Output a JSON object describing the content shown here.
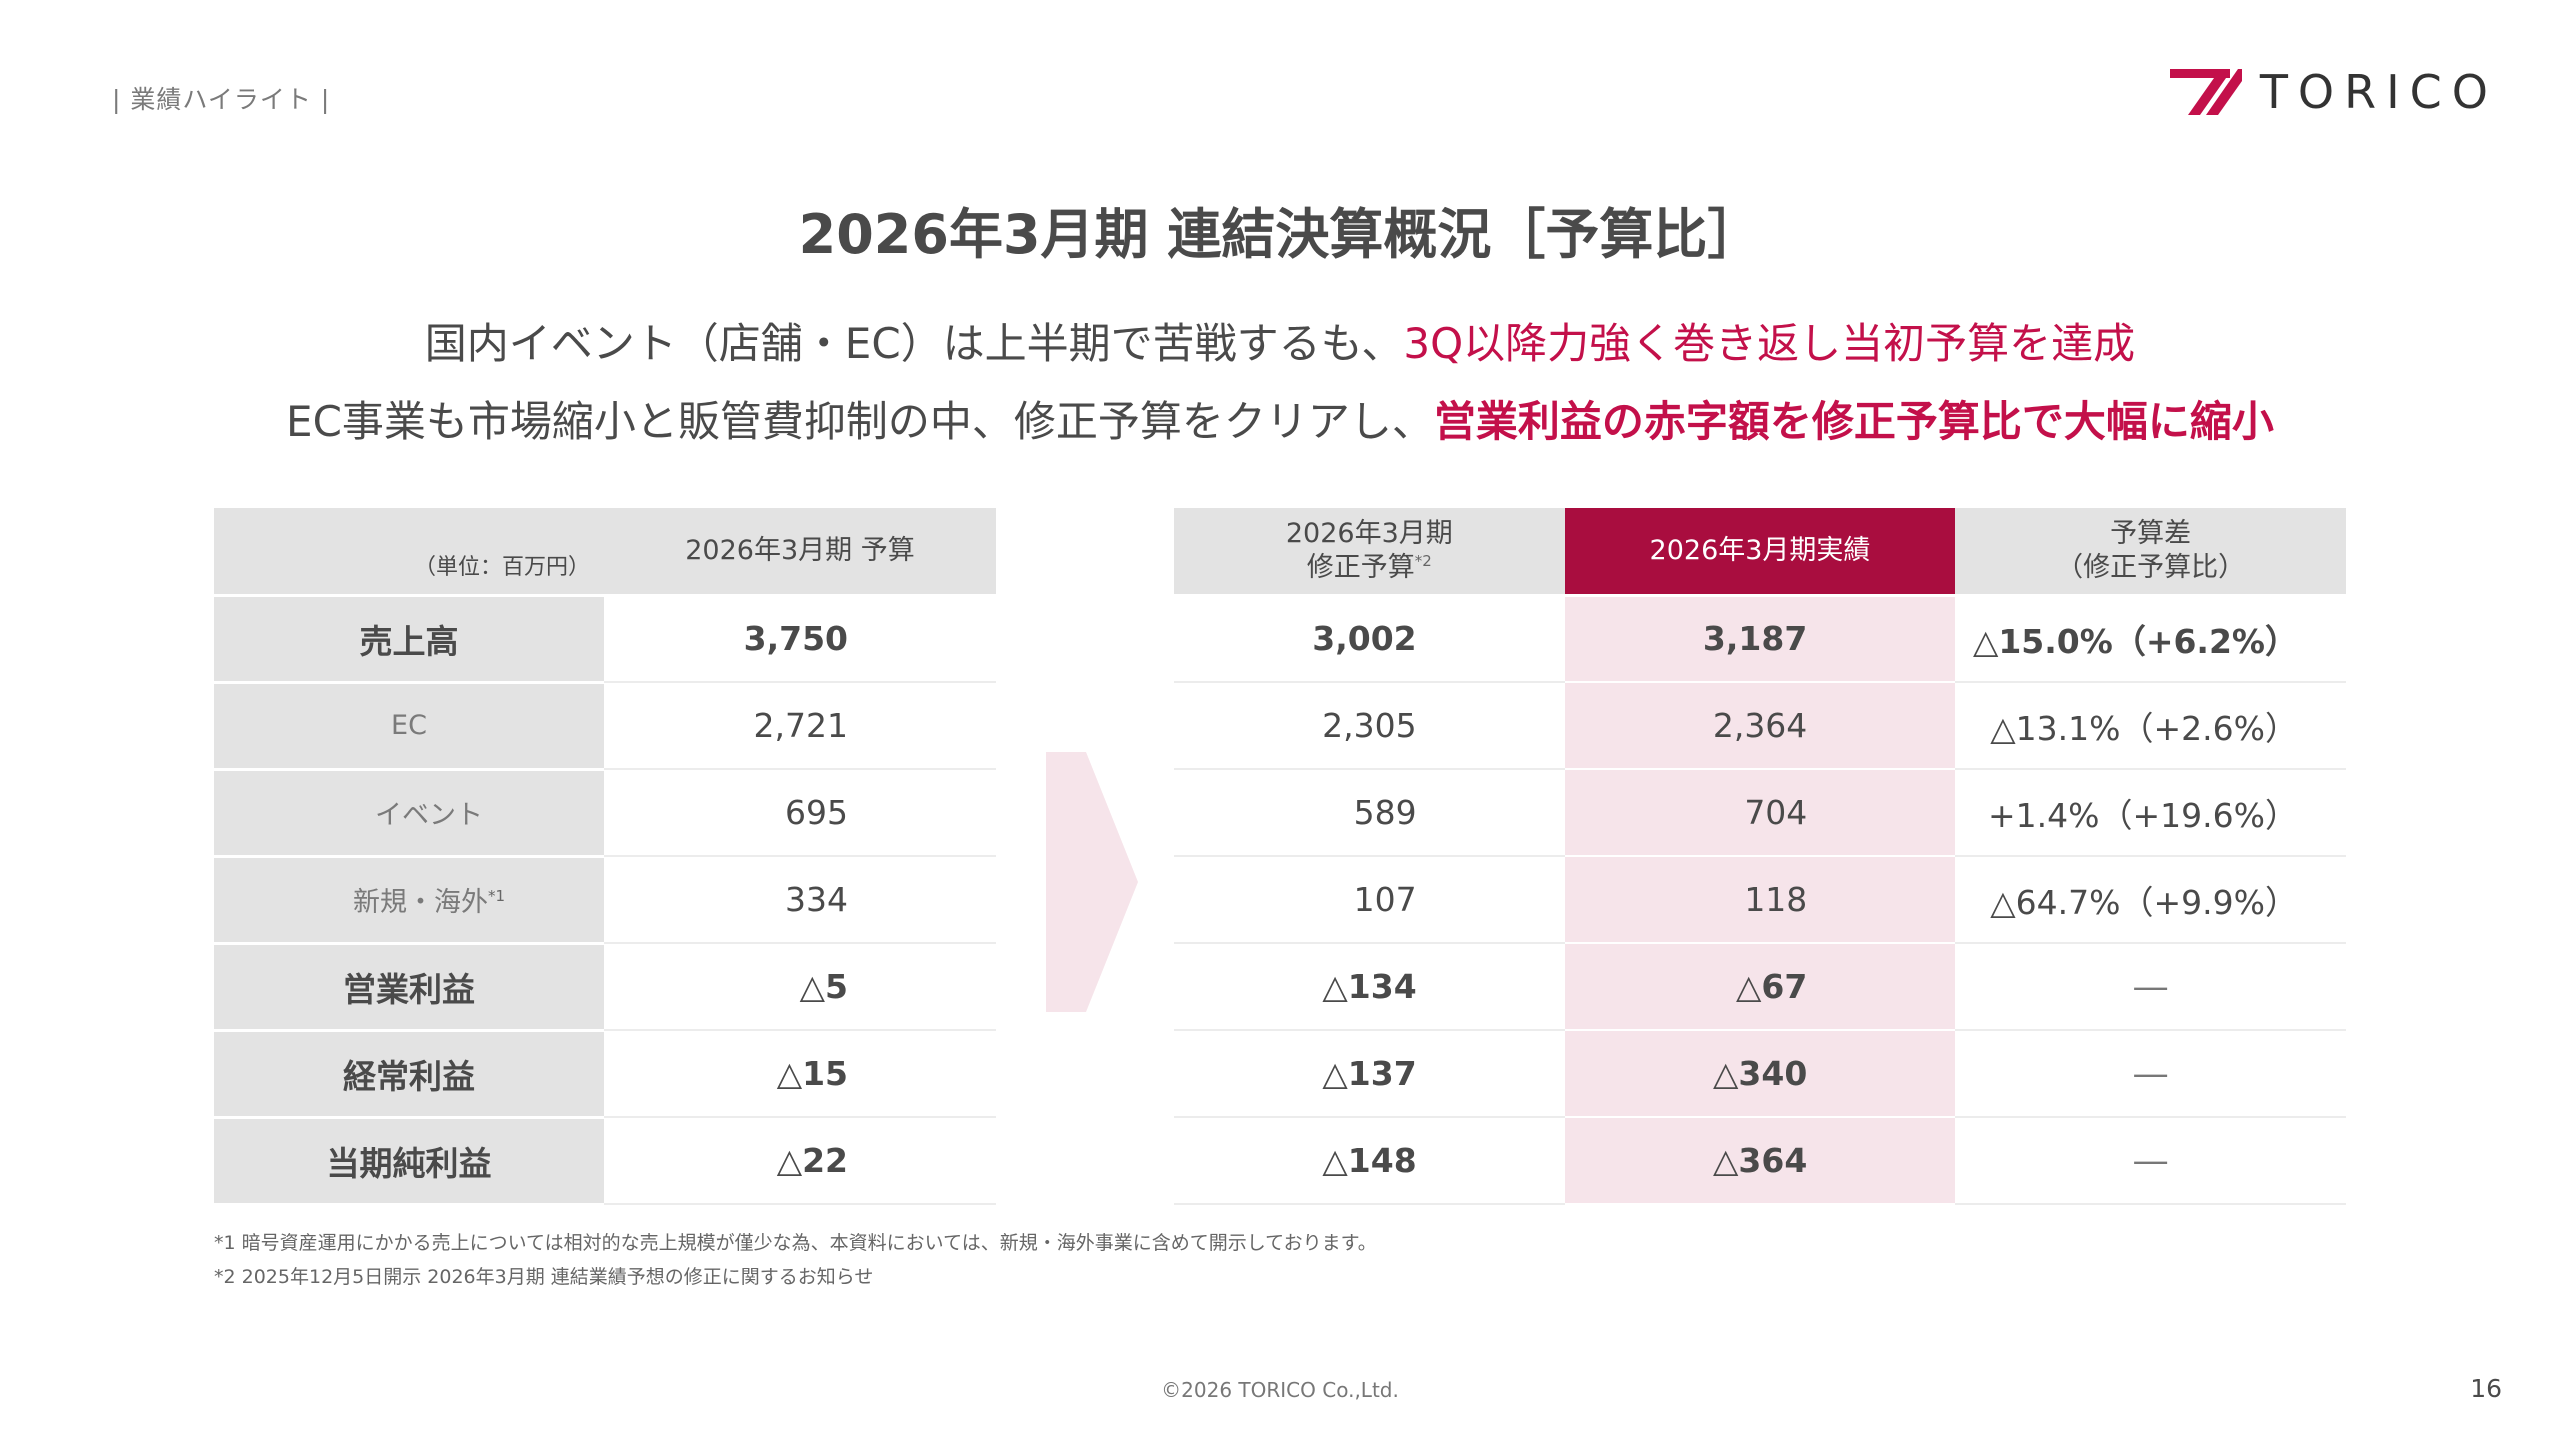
{
  "header": {
    "section_tag": "| 業績ハイライト |",
    "logo_text": "TORICO",
    "logo_color": "#c3104a"
  },
  "title": "2026年3月期 連結決算概況［予算比］",
  "lead": {
    "line1_plain": "国内イベント（店舗・EC）は上半期で苦戦するも、",
    "line1_highlight": "3Q以降力強く巻き返し当初予算を達成",
    "line2_plain": "EC事業も市場縮小と販管費抑制の中、修正予算をクリアし、",
    "line2_highlight": "営業利益の赤字額を修正予算比で大幅に縮小"
  },
  "left_table": {
    "unit": "（単位：百万円）",
    "col_header": "2026年3月期 予算",
    "rows": [
      {
        "label": "売上高",
        "value": "3,750"
      },
      {
        "label": "EC",
        "value": "2,721"
      },
      {
        "label": "イベント",
        "value": "695"
      },
      {
        "label": "新規・海外",
        "note": "*1",
        "value": "334"
      },
      {
        "label": "営業利益",
        "value": "△5"
      },
      {
        "label": "経常利益",
        "value": "△15"
      },
      {
        "label": "当期純利益",
        "value": "△22"
      }
    ]
  },
  "right_table": {
    "headers": {
      "revised_line1": "2026年3月期",
      "revised_line2": "修正予算",
      "revised_note": "*2",
      "actual": "2026年3月期実績",
      "diff_line1": "予算差",
      "diff_line2": "（修正予算比）"
    },
    "rows": [
      {
        "revised": "3,002",
        "actual": "3,187",
        "diff": "△15.0%（+6.2%）"
      },
      {
        "revised": "2,305",
        "actual": "2,364",
        "diff": "△13.1%（+2.6%）"
      },
      {
        "revised": "589",
        "actual": "704",
        "diff": "+1.4%（+19.6%）"
      },
      {
        "revised": "107",
        "actual": "118",
        "diff": "△64.7%（+9.9%）"
      },
      {
        "revised": "△134",
        "actual": "△67",
        "diff": "―"
      },
      {
        "revised": "△137",
        "actual": "△340",
        "diff": "―"
      },
      {
        "revised": "△148",
        "actual": "△364",
        "diff": "―"
      }
    ]
  },
  "footnotes": {
    "note1": "*1 暗号資産運用にかかる売上については相対的な売上規模が僅少な為、本資料においては、新規・海外事業に含めて開示しております。",
    "note2": "*2 2025年12月5日開示 2026年3月期 連結業績予想の修正に関するお知らせ"
  },
  "footer": {
    "copyright": "©2026 TORICO Co.,Ltd.",
    "page_number": "16"
  }
}
